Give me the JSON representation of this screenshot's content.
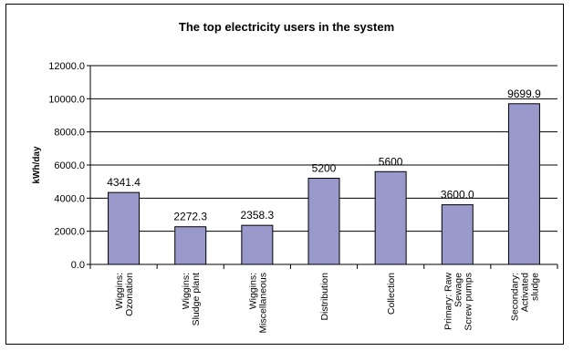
{
  "chart_data": {
    "type": "bar",
    "title": "The top electricity users in the system",
    "xlabel": "",
    "ylabel": "kWh/day",
    "ylim": [
      0,
      12000
    ],
    "yticks": [
      "0.0",
      "2000.0",
      "4000.0",
      "6000.0",
      "8000.0",
      "10000.0",
      "12000.0"
    ],
    "grid": true,
    "legend": "none",
    "bar_color": "#9999cc",
    "categories": [
      [
        "Wiggins:",
        "Ozonation"
      ],
      [
        "Wiggins:",
        "Sludge plant"
      ],
      [
        "Wiggins:",
        "Miscellaneous"
      ],
      [
        "Distribution"
      ],
      [
        "Collection"
      ],
      [
        "Primary: Raw",
        "Sewage",
        "Screw pumps"
      ],
      [
        "Secondary:",
        "Activated",
        "sludge"
      ]
    ],
    "values": [
      4341.4,
      2272.3,
      2358.3,
      5200,
      5600,
      3600.0,
      9699.9
    ],
    "data_labels": [
      "4341.4",
      "2272.3",
      "2358.3",
      "5200",
      "5600",
      "3600.0",
      "9699.9"
    ]
  }
}
